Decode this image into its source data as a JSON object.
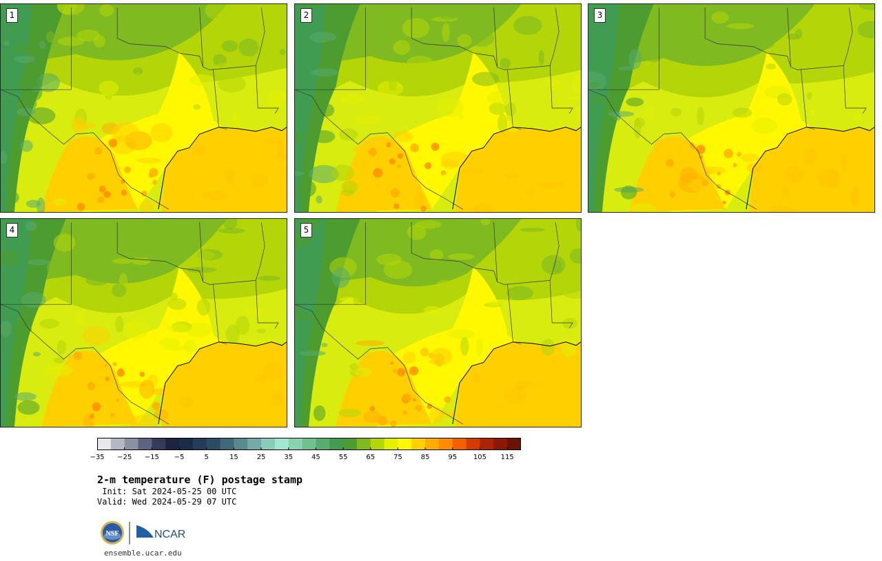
{
  "panels": [
    {
      "label": "1",
      "variant": 1
    },
    {
      "label": "2",
      "variant": 2
    },
    {
      "label": "3",
      "variant": 3
    },
    {
      "label": "4",
      "variant": 4
    },
    {
      "label": "5",
      "variant": 5
    }
  ],
  "colorbar": {
    "colors": [
      "#e6e8ec",
      "#b4b8c4",
      "#8c90a4",
      "#5c6480",
      "#343c5c",
      "#1c2440",
      "#1c2c48",
      "#243c58",
      "#2c4c64",
      "#406878",
      "#5a8a90",
      "#74aaaa",
      "#8ccaba",
      "#a0e6d0",
      "#88d2ae",
      "#70c090",
      "#58ac70",
      "#409c50",
      "#4c9c30",
      "#7eba20",
      "#b4d608",
      "#e4f000",
      "#fff800",
      "#ffd000",
      "#ffae00",
      "#ff8c00",
      "#f46000",
      "#d03c04",
      "#ac2406",
      "#8c1806",
      "#6a1206"
    ],
    "ticks": [
      "−35",
      "−25",
      "−15",
      "−5",
      "5",
      "15",
      "25",
      "35",
      "45",
      "55",
      "65",
      "75",
      "85",
      "95",
      "105",
      "115"
    ]
  },
  "title": "2-m temperature (F) postage stamp",
  "init": " Init: Sat 2024-05-25 00 UTC",
  "valid": "Valid: Wed 2024-05-29 07 UTC",
  "logos": {
    "nsf": "NSF",
    "ncar": "NCAR"
  },
  "url": "ensemble.ucar.edu"
}
